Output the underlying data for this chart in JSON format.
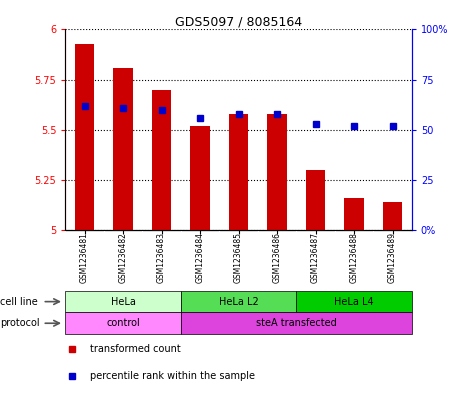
{
  "title": "GDS5097 / 8085164",
  "samples": [
    "GSM1236481",
    "GSM1236482",
    "GSM1236483",
    "GSM1236484",
    "GSM1236485",
    "GSM1236486",
    "GSM1236487",
    "GSM1236488",
    "GSM1236489"
  ],
  "transformed_counts": [
    5.93,
    5.81,
    5.7,
    5.52,
    5.58,
    5.58,
    5.3,
    5.16,
    5.14
  ],
  "percentile_ranks": [
    62,
    61,
    60,
    56,
    58,
    58,
    53,
    52,
    52
  ],
  "ylim_left": [
    5.0,
    6.0
  ],
  "yticks_left": [
    5.0,
    5.25,
    5.5,
    5.75,
    6.0
  ],
  "ytick_labels_left": [
    "5",
    "5.25",
    "5.5",
    "5.75",
    "6"
  ],
  "ylim_right": [
    0,
    100
  ],
  "yticks_right": [
    0,
    25,
    50,
    75,
    100
  ],
  "ytick_labels_right": [
    "0%",
    "25",
    "50",
    "75",
    "100%"
  ],
  "bar_color": "#cc0000",
  "dot_color": "#0000cc",
  "cell_line_groups": [
    {
      "label": "HeLa",
      "start": 0,
      "end": 3,
      "color": "#ccffcc"
    },
    {
      "label": "HeLa L2",
      "start": 3,
      "end": 6,
      "color": "#55dd55"
    },
    {
      "label": "HeLa L4",
      "start": 6,
      "end": 9,
      "color": "#00cc00"
    }
  ],
  "protocol_groups": [
    {
      "label": "control",
      "start": 0,
      "end": 3,
      "color": "#ff88ff"
    },
    {
      "label": "steA transfected",
      "start": 3,
      "end": 9,
      "color": "#dd44dd"
    }
  ],
  "legend_items": [
    {
      "label": "transformed count",
      "color": "#cc0000"
    },
    {
      "label": "percentile rank within the sample",
      "color": "#0000cc"
    }
  ],
  "xtick_bg_color": "#dddddd",
  "cell_line_label": "cell line",
  "protocol_label": "protocol"
}
